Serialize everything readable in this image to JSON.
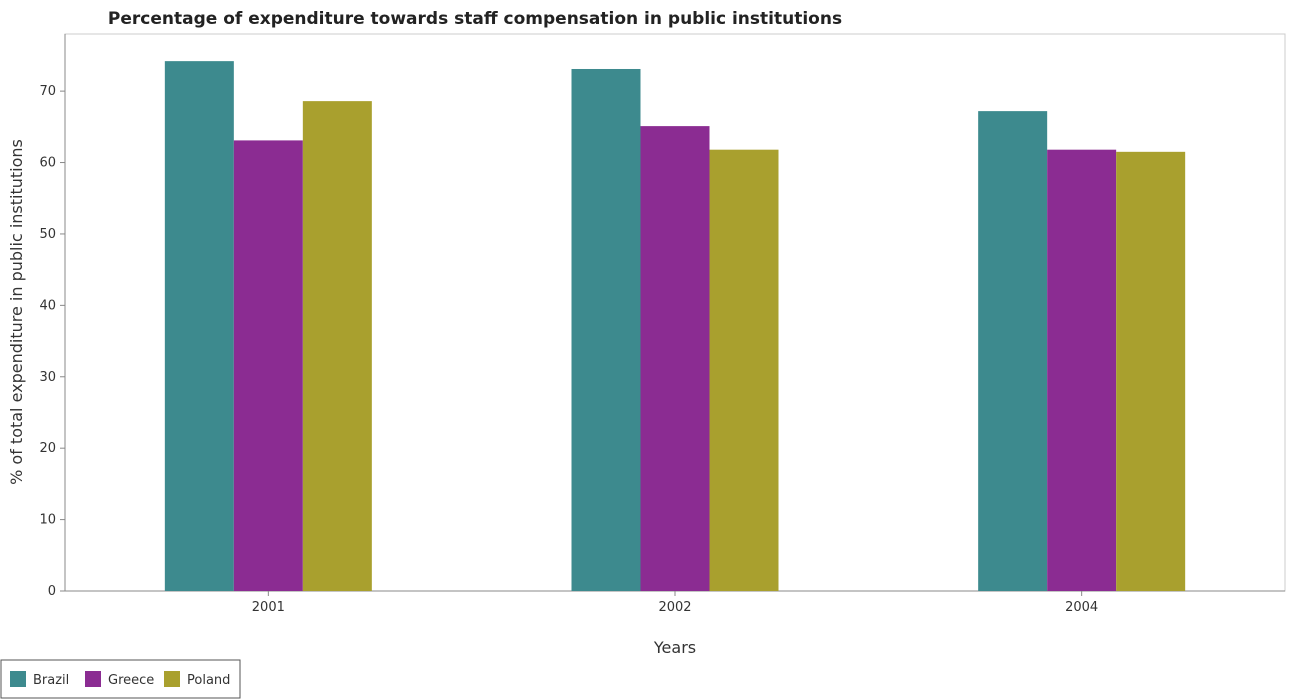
{
  "chart_data": {
    "type": "bar",
    "title": "Percentage of expenditure towards staff compensation in public institutions",
    "xlabel": "Years",
    "ylabel": "% of total expenditure in public institutions",
    "categories": [
      "2001",
      "2002",
      "2004"
    ],
    "series": [
      {
        "name": "Brazil",
        "color": "#3d8a8e",
        "values": [
          74.2,
          73.1,
          67.2
        ]
      },
      {
        "name": "Greece",
        "color": "#8b2c92",
        "values": [
          63.1,
          65.1,
          61.8
        ]
      },
      {
        "name": "Poland",
        "color": "#a9a02e",
        "values": [
          68.6,
          61.8,
          61.5
        ]
      }
    ],
    "ylim": [
      0,
      78
    ],
    "yticks": [
      0,
      10,
      20,
      30,
      40,
      50,
      60,
      70
    ],
    "legend_position": "bottom-left",
    "grid": false
  }
}
